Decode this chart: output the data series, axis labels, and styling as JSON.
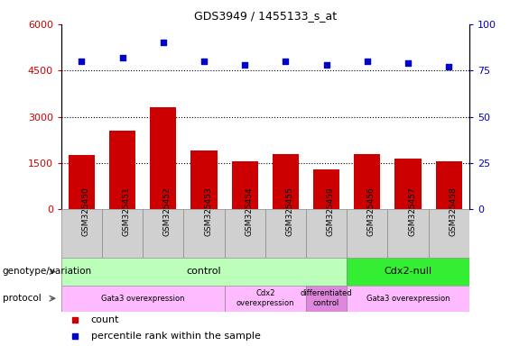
{
  "title": "GDS3949 / 1455133_s_at",
  "samples": [
    "GSM325450",
    "GSM325451",
    "GSM325452",
    "GSM325453",
    "GSM325454",
    "GSM325455",
    "GSM325459",
    "GSM325456",
    "GSM325457",
    "GSM325458"
  ],
  "counts": [
    1750,
    2550,
    3300,
    1900,
    1550,
    1800,
    1300,
    1800,
    1650,
    1550
  ],
  "percentile_ranks": [
    80,
    82,
    90,
    80,
    78,
    80,
    78,
    80,
    79,
    77
  ],
  "ylim_left": [
    0,
    6000
  ],
  "ylim_right": [
    0,
    100
  ],
  "yticks_left": [
    0,
    1500,
    3000,
    4500,
    6000
  ],
  "yticks_right": [
    0,
    25,
    50,
    75,
    100
  ],
  "bar_color": "#cc0000",
  "dot_color": "#0000cc",
  "background_color": "#ffffff",
  "genotype_groups": [
    {
      "label": "control",
      "start": 0,
      "end": 7,
      "color": "#bbffbb"
    },
    {
      "label": "Cdx2-null",
      "start": 7,
      "end": 10,
      "color": "#33ee33"
    }
  ],
  "protocol_groups": [
    {
      "label": "Gata3 overexpression",
      "start": 0,
      "end": 4,
      "color": "#ffbbff"
    },
    {
      "label": "Cdx2\noverexpression",
      "start": 4,
      "end": 6,
      "color": "#ffbbff"
    },
    {
      "label": "differentiated\ncontrol",
      "start": 6,
      "end": 7,
      "color": "#dd88dd"
    },
    {
      "label": "Gata3 overexpression",
      "start": 7,
      "end": 10,
      "color": "#ffbbff"
    }
  ]
}
